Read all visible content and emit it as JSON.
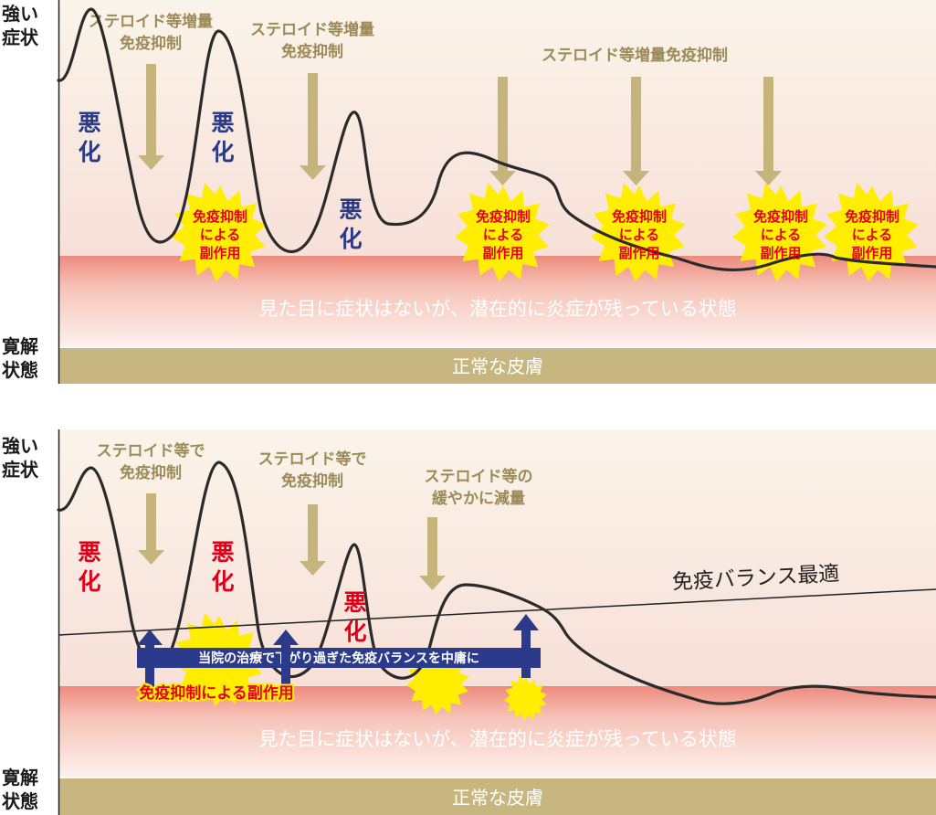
{
  "axis": {
    "strong": [
      "強い",
      "症状"
    ],
    "remission": [
      "寛解",
      "状態"
    ]
  },
  "band_text": "見た目に症状はないが、潜在的に炎症が残っている状態",
  "normal_skin": "正常な皮膚",
  "top": {
    "steroid_labels": [
      [
        "ステロイド等増量",
        "免疫抑制"
      ],
      [
        "ステロイド等増量",
        "免疫抑制"
      ],
      [
        "ステロイド等増量免疫抑制"
      ]
    ],
    "worse_label": [
      "悪",
      "化"
    ],
    "side_effect_label": [
      "免疫抑制",
      "による",
      "副作用"
    ]
  },
  "bottom": {
    "steroid_labels": [
      [
        "ステロイド等で",
        "免疫抑制"
      ],
      [
        "ステロイド等で",
        "免疫抑制"
      ],
      [
        "ステロイド等の",
        "緩やかに減量"
      ]
    ],
    "worse_label": [
      "悪",
      "化"
    ],
    "balance_label": "免疫バランス最適",
    "clinic_banner": "当院の治療で下がり過ぎた免疫バランスを中庸に",
    "side_effect_label": "免疫抑制による副作用"
  },
  "colors": {
    "curve": "#2b2b2b",
    "arrow": "#c5b47c",
    "steroid_text": "#9c8a58",
    "worse_top": "#2a3a84",
    "worse_bottom": "#e0001a",
    "normal_band": "#c7b67f",
    "inflammation_band": "#ef8d80",
    "star": "#ffee00",
    "star_text": "#e2001a",
    "clinic_banner": "#2b3a8b"
  }
}
